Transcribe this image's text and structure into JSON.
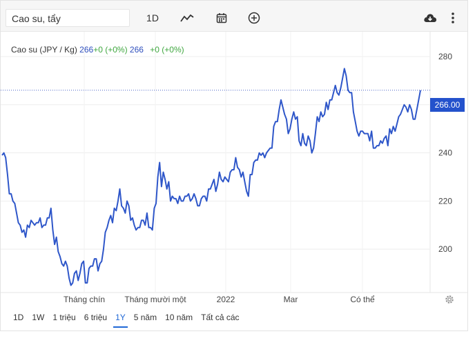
{
  "toolbar": {
    "search_value": "Cao su, tẩy",
    "interval_label": "1D",
    "icons": [
      "line-chart-icon",
      "calendar-icon",
      "add-circle-icon",
      "cloud-download-icon",
      "more-vertical-icon"
    ]
  },
  "legend": {
    "name": "Cao su (JPY / Kg)",
    "value1": "266",
    "change1": "+0 (+0%)",
    "value2": "266",
    "change2": "+0 (+0%)"
  },
  "price_tag": "266.00",
  "ranges": [
    "1D",
    "1W",
    "1 triệu",
    "6 triệu",
    "1Y",
    "5 năm",
    "10 năm",
    "Tất cả các"
  ],
  "active_range": "1Y",
  "colors": {
    "line": "#2e56c9",
    "accent": "#1f67d6",
    "tag": "#2452cc",
    "change": "#3fa73f"
  },
  "chart_data": {
    "type": "line",
    "title": "Cao su (JPY / Kg)",
    "xlabel": "",
    "ylabel": "",
    "ylim": [
      182,
      286
    ],
    "yticks": [
      200,
      220,
      240,
      260,
      280
    ],
    "xtick_labels": [
      "Tháng chín",
      "Tháng mười một",
      "2022",
      "Mar",
      "Có thể"
    ],
    "last_value": 266,
    "grid": true,
    "series": [
      {
        "values": [
          239,
          240,
          238,
          231,
          223,
          223,
          220,
          219,
          215,
          211,
          210,
          207,
          208,
          205,
          210,
          209,
          212,
          211,
          210,
          211,
          211,
          213,
          209,
          210,
          210,
          213,
          213,
          217,
          208,
          202,
          205,
          199,
          197,
          194,
          193,
          195,
          193,
          188,
          185,
          186,
          190,
          191,
          187,
          190,
          194,
          195,
          186,
          186,
          192,
          193,
          193,
          196,
          196,
          191,
          194,
          195,
          200,
          207,
          209,
          212,
          214,
          211,
          217,
          216,
          220,
          225,
          218,
          217,
          215,
          220,
          218,
          212,
          213,
          210,
          208,
          209,
          209,
          212,
          212,
          210,
          215,
          209,
          209,
          208,
          217,
          219,
          230,
          236,
          226,
          232,
          229,
          225,
          228,
          220,
          222,
          221,
          221,
          219,
          222,
          220,
          220,
          222,
          222,
          223,
          220,
          221,
          223,
          221,
          218,
          218,
          221,
          222,
          222,
          220,
          225,
          225,
          227,
          229,
          224,
          227,
          232,
          229,
          228,
          230,
          229,
          228,
          232,
          233,
          233,
          238,
          234,
          233,
          230,
          232,
          228,
          224,
          222,
          231,
          231,
          236,
          237,
          237,
          240,
          239,
          240,
          238,
          240,
          241,
          242,
          242,
          251,
          253,
          253,
          258,
          262,
          259,
          256,
          254,
          248,
          250,
          254,
          257,
          254,
          255,
          245,
          243,
          248,
          244,
          243,
          247,
          245,
          240,
          242,
          248,
          255,
          253,
          257,
          255,
          256,
          261,
          258,
          262,
          262,
          265,
          268,
          265,
          264,
          267,
          271,
          275,
          272,
          266,
          265,
          265,
          257,
          253,
          249,
          247,
          249,
          249,
          248,
          248,
          248,
          245,
          249,
          242,
          242,
          243,
          243,
          245,
          244,
          246,
          247,
          243,
          250,
          248,
          251,
          249,
          252,
          255,
          256,
          258,
          260,
          259,
          257,
          260,
          258,
          254,
          254,
          258,
          262,
          266
        ]
      }
    ]
  }
}
